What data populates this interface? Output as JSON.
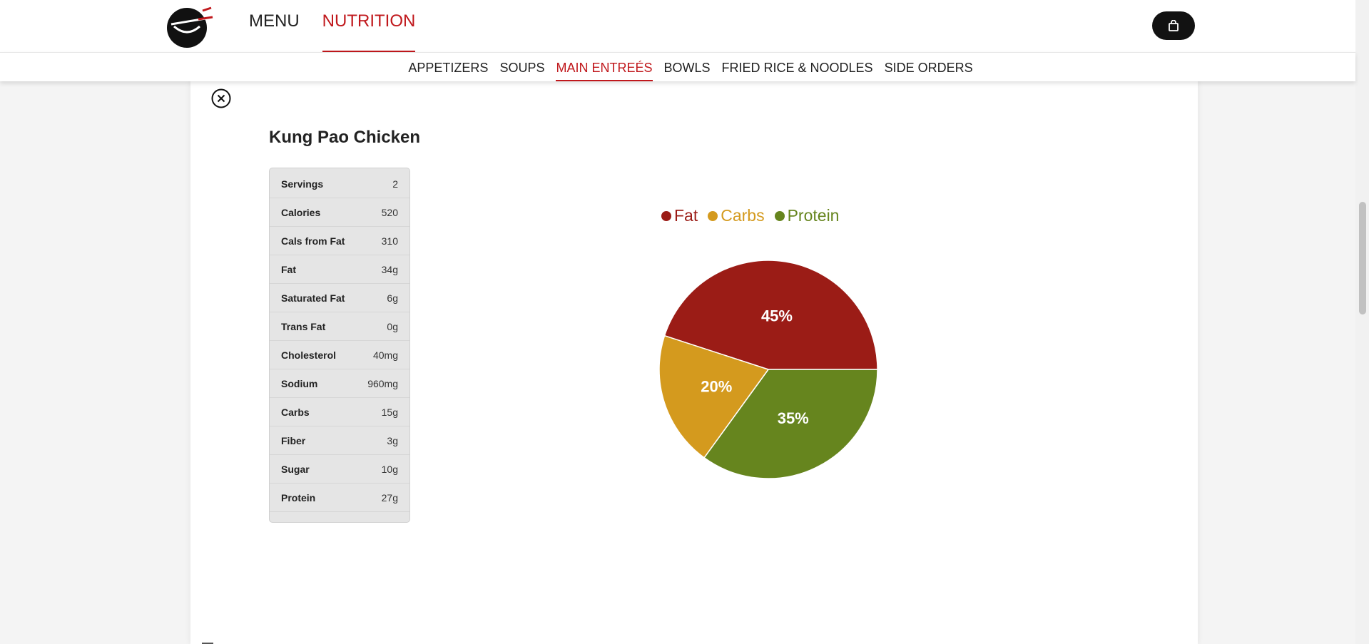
{
  "header": {
    "nav": [
      {
        "label": "MENU",
        "active": false
      },
      {
        "label": "NUTRITION",
        "active": true
      }
    ],
    "cart_icon": "shopping-bag-icon"
  },
  "subnav": {
    "items": [
      {
        "label": "APPETIZERS",
        "active": false
      },
      {
        "label": "SOUPS",
        "active": false
      },
      {
        "label": "MAIN ENTREÉS",
        "active": true
      },
      {
        "label": "BOWLS",
        "active": false
      },
      {
        "label": "FRIED RICE & NOODLES",
        "active": false
      },
      {
        "label": "SIDE ORDERS",
        "active": false
      }
    ]
  },
  "dish": {
    "title": "Kung Pao Chicken",
    "close_icon": "close-circle-icon",
    "nutrition": [
      {
        "label": "Servings",
        "value": "2"
      },
      {
        "label": "Calories",
        "value": "520"
      },
      {
        "label": "Cals from Fat",
        "value": "310"
      },
      {
        "label": "Fat",
        "value": "34g"
      },
      {
        "label": "Saturated Fat",
        "value": "6g"
      },
      {
        "label": "Trans Fat",
        "value": "0g"
      },
      {
        "label": "Cholesterol",
        "value": "40mg"
      },
      {
        "label": "Sodium",
        "value": "960mg"
      },
      {
        "label": "Carbs",
        "value": "15g"
      },
      {
        "label": "Fiber",
        "value": "3g"
      },
      {
        "label": "Sugar",
        "value": "10g"
      },
      {
        "label": "Protein",
        "value": "27g"
      }
    ]
  },
  "colors": {
    "accent": "#c0181c",
    "fat": "#9b1c16",
    "carbs": "#d49a1e",
    "protein": "#66851e"
  },
  "chart_data": {
    "type": "pie",
    "legend_position": "top",
    "slices": [
      {
        "name": "Fat",
        "value": 45,
        "label": "45%",
        "color": "#9b1c16"
      },
      {
        "name": "Protein",
        "value": 35,
        "label": "35%",
        "color": "#66851e"
      },
      {
        "name": "Carbs",
        "value": 20,
        "label": "20%",
        "color": "#d49a1e"
      }
    ]
  }
}
